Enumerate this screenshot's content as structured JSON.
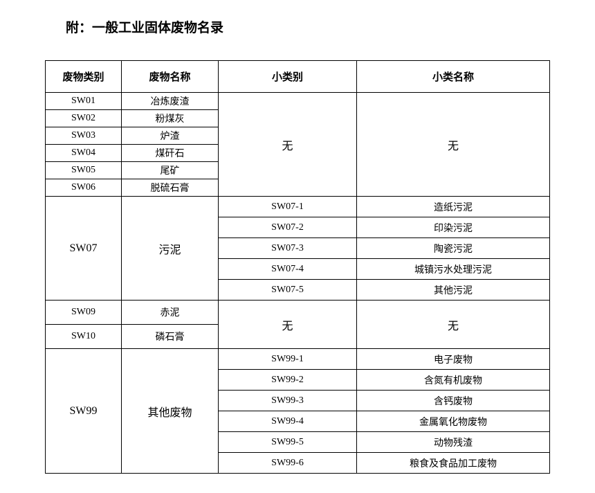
{
  "title": "附：一般工业固体废物名录",
  "headers": {
    "col1": "废物类别",
    "col2": "废物名称",
    "col3": "小类别",
    "col4": "小类名称"
  },
  "group1": {
    "rows": [
      {
        "code": "SW01",
        "name": "冶炼废渣"
      },
      {
        "code": "SW02",
        "name": "粉煤灰"
      },
      {
        "code": "SW03",
        "name": "炉渣"
      },
      {
        "code": "SW04",
        "name": "煤矸石"
      },
      {
        "code": "SW05",
        "name": "尾矿"
      },
      {
        "code": "SW06",
        "name": "脱硫石膏"
      }
    ],
    "sub_category": "无",
    "sub_name": "无"
  },
  "group2": {
    "code": "SW07",
    "name": "污泥",
    "subs": [
      {
        "code": "SW07-1",
        "name": "造纸污泥"
      },
      {
        "code": "SW07-2",
        "name": "印染污泥"
      },
      {
        "code": "SW07-3",
        "name": "陶瓷污泥"
      },
      {
        "code": "SW07-4",
        "name": "城镇污水处理污泥"
      },
      {
        "code": "SW07-5",
        "name": "其他污泥"
      }
    ]
  },
  "group3": {
    "rows": [
      {
        "code": "SW09",
        "name": "赤泥"
      },
      {
        "code": "SW10",
        "name": "磷石膏"
      }
    ],
    "sub_category": "无",
    "sub_name": "无"
  },
  "group4": {
    "code": "SW99",
    "name": "其他废物",
    "subs": [
      {
        "code": "SW99-1",
        "name": "电子废物"
      },
      {
        "code": "SW99-2",
        "name": "含氮有机废物"
      },
      {
        "code": "SW99-3",
        "name": "含钙废物"
      },
      {
        "code": "SW99-4",
        "name": "金属氧化物废物"
      },
      {
        "code": "SW99-5",
        "name": "动物残渣"
      },
      {
        "code": "SW99-6",
        "name": "粮食及食品加工废物"
      }
    ]
  },
  "styling": {
    "background_color": "#ffffff",
    "border_color": "#000000",
    "text_color": "#000000",
    "title_fontsize": 19,
    "header_fontsize": 15,
    "cell_fontsize": 14,
    "font_family": "SimSun"
  }
}
